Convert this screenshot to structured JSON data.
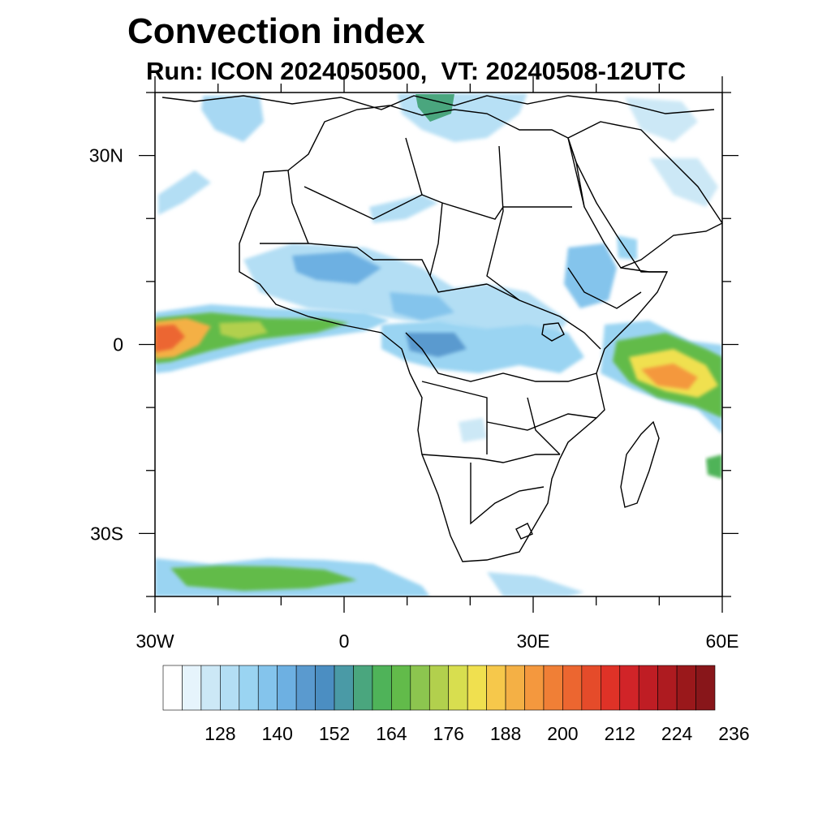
{
  "title": "Convection index",
  "subtitle": "Run: ICON 2024050500,  VT: 20240508-12UTC",
  "map": {
    "lat_labels": [
      {
        "lat": 30,
        "label": "30N"
      },
      {
        "lat": 0,
        "label": "0"
      },
      {
        "lat": -30,
        "label": "30S"
      }
    ],
    "lon_labels": [
      {
        "lon": -30,
        "label": "30W"
      },
      {
        "lon": 0,
        "label": "0"
      },
      {
        "lon": 30,
        "label": "30E"
      },
      {
        "lon": 60,
        "label": "60E"
      }
    ],
    "lat_range": [
      -40,
      40
    ],
    "lon_range": [
      -30,
      60
    ]
  },
  "colorbar": {
    "colors": [
      "#ffffff",
      "#e6f4fc",
      "#cce8f6",
      "#b3def4",
      "#9ad4f2",
      "#84c4ec",
      "#6db0e2",
      "#5a9acf",
      "#4b8ec2",
      "#4a9aa6",
      "#4aa67e",
      "#4fb359",
      "#62bb4a",
      "#8cc54f",
      "#b2d04d",
      "#d8de4f",
      "#f0e04f",
      "#f6c84b",
      "#f4b045",
      "#f4983e",
      "#f07f36",
      "#ec6630",
      "#e54b2a",
      "#df3227",
      "#d12428",
      "#bf1d24",
      "#ae1b20",
      "#9a181b",
      "#88161a"
    ],
    "labels": [
      "128",
      "140",
      "152",
      "164",
      "176",
      "188",
      "200",
      "212",
      "224",
      "236"
    ]
  }
}
